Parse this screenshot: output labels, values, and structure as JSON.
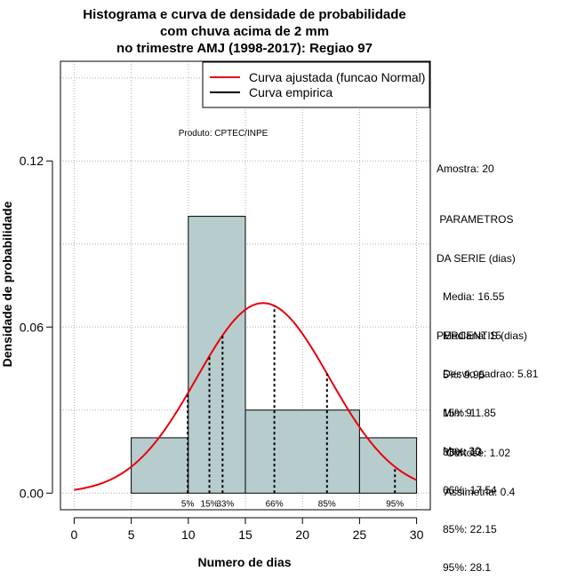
{
  "chart_data": {
    "type": "histogram",
    "title": [
      "Histograma e curva de densidade de probabilidade",
      "com chuva acima de 2 mm",
      "no trimestre AMJ (1998-2017): Regiao 97"
    ],
    "xlabel": "Numero de dias",
    "ylabel": "Densidade de probabilidade",
    "xlim": [
      -1.2,
      31.2
    ],
    "ylim": [
      -0.006,
      0.156
    ],
    "x_ticks": [
      0,
      5,
      10,
      15,
      20,
      25,
      30
    ],
    "x_tick_labels": [
      "0",
      "5",
      "10",
      "15",
      "20",
      "25",
      "30"
    ],
    "y_ticks": [
      0.0,
      0.06,
      0.12
    ],
    "y_tick_labels": [
      "0.00",
      "0.06",
      "0.12"
    ],
    "bins": [
      {
        "start": 5,
        "end": 10,
        "density": 0.02
      },
      {
        "start": 10,
        "end": 15,
        "density": 0.1
      },
      {
        "start": 15,
        "end": 25,
        "density": 0.03
      },
      {
        "start": 25,
        "end": 30,
        "density": 0.02
      }
    ],
    "normal_curve": {
      "mean": 16.55,
      "sd": 5.81,
      "x_range": [
        0,
        30
      ]
    },
    "percentile_lines": [
      {
        "label": "5%",
        "value": 9.95
      },
      {
        "label": "15%",
        "value": 11.85
      },
      {
        "label": "33%",
        "value": 13
      },
      {
        "label": "66%",
        "value": 17.54
      },
      {
        "label": "85%",
        "value": 22.15
      },
      {
        "label": "95%",
        "value": 28.1
      }
    ],
    "legend": [
      {
        "label": "Curva ajustada (funcao Normal)",
        "color": "#e8000b"
      },
      {
        "label": "Curva empirica",
        "color": "#000000"
      }
    ],
    "legend_position": "top-right",
    "product_label": "Produto: CPTEC/INPE",
    "grid": true
  },
  "stats": {
    "sample": "Amostra: 20",
    "params_header": [
      " PARAMETROS",
      "DA SERIE (dias)"
    ],
    "params": [
      "Media: 16.55",
      "Mediana: 15",
      "Desvio padrao: 5.81",
      "Min: 9",
      "Max: 30"
    ],
    "percentiles_header": "PERCENTIS (dias)",
    "percentiles": [
      "5%: 9.95",
      "15%: 11.85",
      "33%: 13",
      "66%: 17.54",
      "85%: 22.15",
      "95%: 28.1"
    ],
    "shape": [
      "Curtose: 1.02",
      "Assimetria: 0.4"
    ]
  },
  "colors": {
    "bar_fill": "#b7cdcd",
    "curve": "#e8000b",
    "grid": "#b0b0b0"
  }
}
